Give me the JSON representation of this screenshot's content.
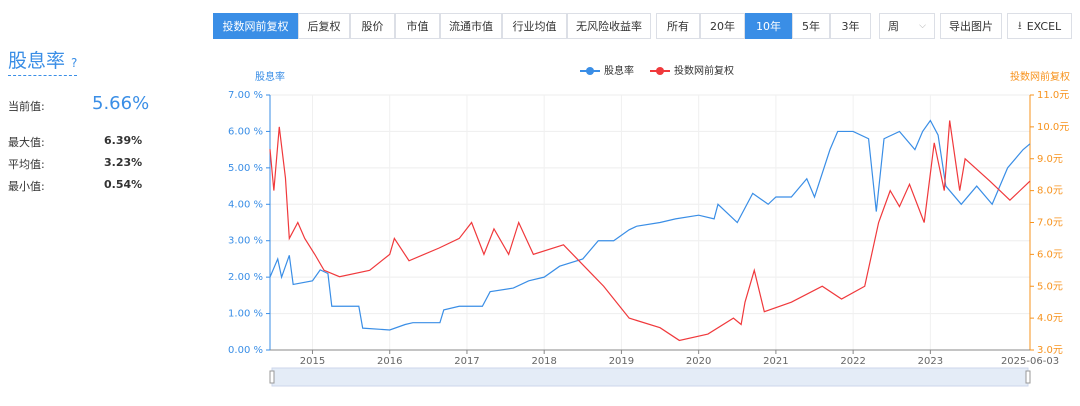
{
  "panel": {
    "title": "股息率",
    "help": "?",
    "stats": [
      {
        "label": "当前值:",
        "value": "5.66%"
      },
      {
        "label": "最大值:",
        "value": "6.39%"
      },
      {
        "label": "平均值:",
        "value": "3.23%"
      },
      {
        "label": "最小值:",
        "value": "0.54%"
      }
    ]
  },
  "toolbar": {
    "price_types": [
      "投数网前复权",
      "后复权",
      "股价",
      "市值",
      "流通市值",
      "行业均值",
      "无风险收益率"
    ],
    "ranges": [
      "所有",
      "20年",
      "10年",
      "5年",
      "3年"
    ],
    "period": "周",
    "export_image": "导出图片",
    "export_excel": "EXCEL"
  },
  "chart_data": {
    "type": "line",
    "y_label": "股息率",
    "y2_label": "投数网前复权",
    "xlim": [
      2014.45,
      2024.29
    ],
    "xticks": [
      2015,
      2016,
      2017,
      2018,
      2019,
      2020,
      2021,
      2022,
      2023
    ],
    "x_end_label": "2025-06-03",
    "ylim": [
      0,
      7
    ],
    "yticks": [
      {
        "value": 0,
        "label": "0.00 %"
      },
      {
        "value": 1,
        "label": "1.00 %"
      },
      {
        "value": 2,
        "label": "2.00 %"
      },
      {
        "value": 3,
        "label": "3.00 %"
      },
      {
        "value": 4,
        "label": "4.00 %"
      },
      {
        "value": 5,
        "label": "5.00 %"
      },
      {
        "value": 6,
        "label": "6.00 %"
      },
      {
        "value": 7,
        "label": "7.00 %"
      }
    ],
    "y2lim": [
      3,
      11
    ],
    "y2ticks": [
      {
        "value": 3,
        "label": "3.0元"
      },
      {
        "value": 4,
        "label": "4.0元"
      },
      {
        "value": 5,
        "label": "5.0元"
      },
      {
        "value": 6,
        "label": "6.0元"
      },
      {
        "value": 7,
        "label": "7.0元"
      },
      {
        "value": 8,
        "label": "8.0元"
      },
      {
        "value": 9,
        "label": "9.0元"
      },
      {
        "value": 10,
        "label": "10.0元"
      },
      {
        "value": 11,
        "label": "11.0元"
      }
    ],
    "grid": true,
    "series": [
      {
        "name": "股息率",
        "color": "#3a8ee6",
        "axis": "y",
        "x": [
          2014.45,
          2014.55,
          2014.6,
          2014.7,
          2014.75,
          2015.0,
          2015.1,
          2015.2,
          2015.25,
          2015.6,
          2015.65,
          2016.0,
          2016.2,
          2016.3,
          2016.65,
          2016.7,
          2016.9,
          2017.2,
          2017.3,
          2017.6,
          2017.8,
          2018.0,
          2018.2,
          2018.5,
          2018.7,
          2018.9,
          2019.1,
          2019.2,
          2019.5,
          2019.7,
          2020.0,
          2020.2,
          2020.25,
          2020.5,
          2020.7,
          2020.9,
          2021.0,
          2021.2,
          2021.4,
          2021.5,
          2021.7,
          2021.8,
          2022.0,
          2022.2,
          2022.3,
          2022.4,
          2022.6,
          2022.8,
          2022.9,
          2023.0,
          2023.1,
          2023.2,
          2023.4,
          2023.6,
          2023.8,
          2024.0,
          2024.2,
          2024.29
        ],
        "values": [
          2.0,
          2.5,
          2.0,
          2.6,
          1.8,
          1.9,
          2.2,
          2.1,
          1.2,
          1.2,
          0.6,
          0.55,
          0.7,
          0.75,
          0.75,
          1.1,
          1.2,
          1.2,
          1.6,
          1.7,
          1.9,
          2.0,
          2.3,
          2.5,
          3.0,
          3.0,
          3.3,
          3.4,
          3.5,
          3.6,
          3.7,
          3.6,
          4.0,
          3.5,
          4.3,
          4.0,
          4.2,
          4.2,
          4.7,
          4.2,
          5.5,
          6.0,
          6.0,
          5.8,
          3.8,
          5.8,
          6.0,
          5.5,
          6.0,
          6.3,
          5.9,
          4.5,
          4.0,
          4.5,
          4.0,
          5.0,
          5.5,
          5.66
        ]
      },
      {
        "name": "投数网前复权",
        "color": "#f0393c",
        "axis": "y2",
        "x": [
          2014.45,
          2014.5,
          2014.57,
          2014.65,
          2014.7,
          2014.81,
          2014.9,
          2015.03,
          2015.15,
          2015.35,
          2015.74,
          2016.0,
          2016.06,
          2016.25,
          2016.64,
          2016.9,
          2017.06,
          2017.22,
          2017.35,
          2017.54,
          2017.67,
          2017.86,
          2018.25,
          2018.57,
          2018.77,
          2019.1,
          2019.5,
          2019.75,
          2020.12,
          2020.45,
          2020.55,
          2020.6,
          2020.72,
          2020.85,
          2021.2,
          2021.6,
          2021.85,
          2022.15,
          2022.33,
          2022.48,
          2022.6,
          2022.73,
          2022.92,
          2023.05,
          2023.18,
          2023.25,
          2023.38,
          2023.45,
          2023.77,
          2024.03,
          2024.16,
          2024.29
        ],
        "values": [
          9.3,
          8.0,
          10.0,
          8.4,
          6.5,
          7.0,
          6.5,
          6.0,
          5.5,
          5.3,
          5.5,
          6.0,
          6.5,
          5.8,
          6.2,
          6.5,
          7.0,
          6.0,
          6.8,
          6.0,
          7.0,
          6.0,
          6.3,
          5.5,
          5.0,
          4.0,
          3.7,
          3.3,
          3.5,
          4.0,
          3.8,
          4.5,
          5.5,
          4.2,
          4.5,
          5.0,
          4.6,
          5.0,
          7.0,
          8.0,
          7.5,
          8.2,
          7.0,
          9.5,
          8.0,
          10.2,
          8.0,
          9.0,
          8.3,
          7.7,
          8.0,
          8.3
        ]
      }
    ]
  }
}
